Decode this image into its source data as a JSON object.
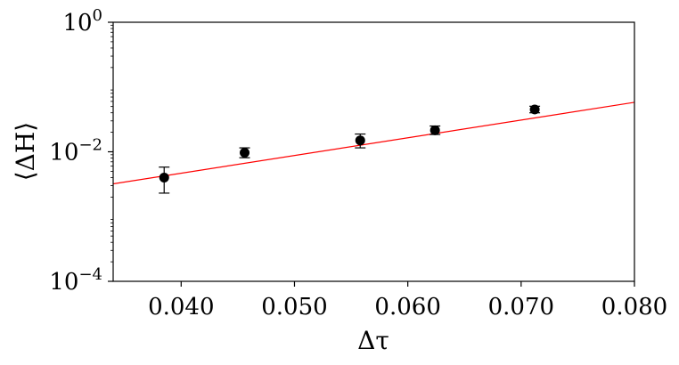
{
  "chart_data": {
    "type": "scatter",
    "xlabel": "Δτ",
    "ylabel": "⟨ΔH⟩",
    "xlim": [
      0.034,
      0.08
    ],
    "ylim": [
      0.0001,
      1
    ],
    "yscale": "log",
    "grid": false,
    "x_ticks": [
      {
        "value": 0.04,
        "label": "0.040"
      },
      {
        "value": 0.05,
        "label": "0.050"
      },
      {
        "value": 0.06,
        "label": "0.060"
      },
      {
        "value": 0.07,
        "label": "0.070"
      },
      {
        "value": 0.08,
        "label": "0.080"
      }
    ],
    "y_ticks": [
      {
        "value": 1,
        "base": "10",
        "exp": "0"
      },
      {
        "value": 0.01,
        "base": "10",
        "exp": "−2"
      },
      {
        "value": 0.0001,
        "base": "10",
        "exp": "−4"
      }
    ],
    "points": [
      {
        "x": 0.0385,
        "y": 0.004,
        "ylow": 0.0023,
        "yhigh": 0.0058
      },
      {
        "x": 0.0456,
        "y": 0.0097,
        "ylow": 0.0081,
        "yhigh": 0.0115
      },
      {
        "x": 0.0558,
        "y": 0.015,
        "ylow": 0.0115,
        "yhigh": 0.0188
      },
      {
        "x": 0.0624,
        "y": 0.0215,
        "ylow": 0.0185,
        "yhigh": 0.025
      },
      {
        "x": 0.0712,
        "y": 0.045,
        "ylow": 0.04,
        "yhigh": 0.0505
      }
    ],
    "fit_line": {
      "x": [
        0.034,
        0.08
      ],
      "y": [
        0.0032,
        0.058
      ]
    },
    "colors": {
      "points": "#000000",
      "fit_line": "#ff0000",
      "axes": "#000000"
    }
  }
}
